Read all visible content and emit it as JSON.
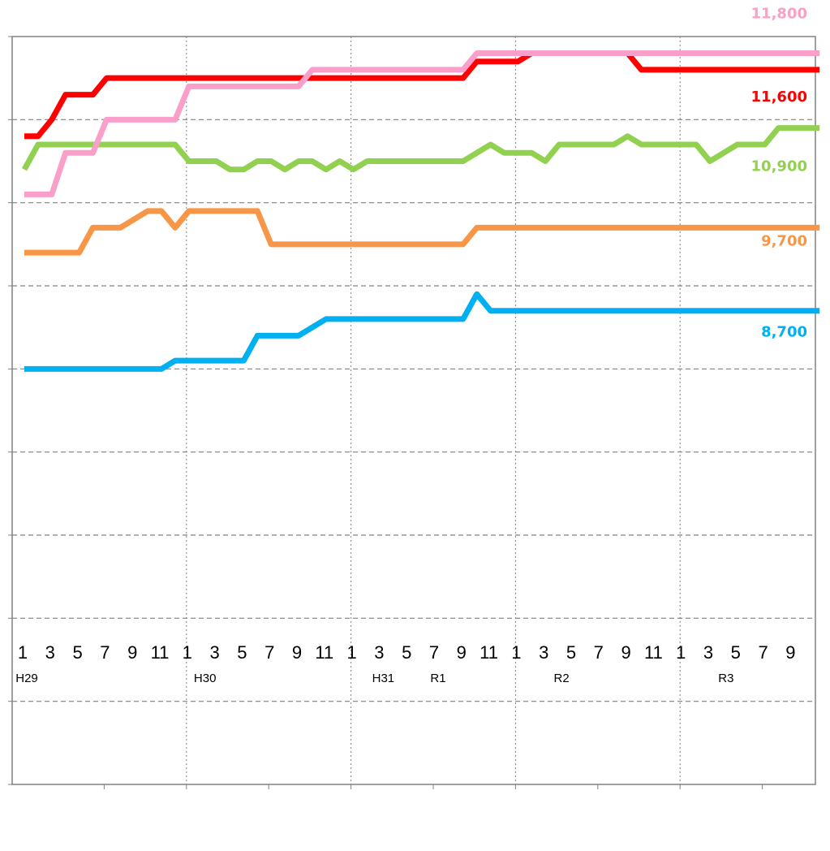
{
  "chart_data": {
    "type": "line",
    "categories": [
      "1",
      null,
      "3",
      null,
      "5",
      null,
      "7",
      null,
      "9",
      null,
      "11",
      null,
      "1",
      null,
      "3",
      null,
      "5",
      null,
      "7",
      null,
      "9",
      null,
      "11",
      null,
      "1",
      null,
      "3",
      null,
      "5",
      null,
      "7",
      null,
      "9",
      null,
      "11",
      null,
      "1",
      null,
      "3",
      null,
      "5",
      null,
      "7",
      null,
      "9",
      null,
      "11",
      null,
      "1",
      null,
      "3",
      null,
      "5",
      null,
      "7",
      null,
      "9",
      null,
      null
    ],
    "era_labels": [
      "H29",
      null,
      null,
      null,
      null,
      null,
      null,
      null,
      null,
      null,
      null,
      null,
      null,
      "H30",
      null,
      null,
      null,
      null,
      null,
      null,
      null,
      null,
      null,
      null,
      null,
      null,
      "H31",
      null,
      null,
      null,
      "R1",
      null,
      null,
      null,
      null,
      null,
      null,
      null,
      null,
      "R2",
      null,
      null,
      null,
      null,
      null,
      null,
      null,
      null,
      null,
      null,
      null,
      "R3",
      null,
      null,
      null,
      null,
      null,
      null,
      null
    ],
    "ylim": [
      3000,
      12000
    ],
    "yticks": [
      3000,
      4000,
      5000,
      6000,
      7000,
      8000,
      9000,
      10000,
      11000,
      12000
    ],
    "grid": true,
    "series": [
      {
        "color": "#00b0f0",
        "values": [
          8000,
          8000,
          8000,
          8000,
          8000,
          8000,
          8000,
          8000,
          8000,
          8000,
          8000,
          8100,
          8100,
          8100,
          8100,
          8100,
          8100,
          8400,
          8400,
          8400,
          8400,
          8500,
          8600,
          8600,
          8600,
          8600,
          8600,
          8600,
          8600,
          8600,
          8600,
          8600,
          8600,
          8900,
          8700,
          8700,
          8700,
          8700,
          8700,
          8700,
          8700,
          8700,
          8700,
          8700,
          8700,
          8700,
          8700,
          8700,
          8700,
          8700,
          8700,
          8700,
          8700,
          8700,
          8700,
          8700,
          8700,
          8700,
          8700
        ],
        "value_labels": [
          null,
          null,
          null,
          null,
          null,
          null,
          null,
          null,
          null,
          null,
          null,
          null,
          null,
          null,
          null,
          null,
          null,
          null,
          null,
          null,
          null,
          null,
          null,
          null,
          null,
          null,
          null,
          null,
          null,
          null,
          null,
          null,
          null,
          null,
          null,
          null,
          null,
          null,
          null,
          null,
          null,
          null,
          null,
          null,
          null,
          null,
          null,
          null,
          null,
          null,
          null,
          null,
          null,
          null,
          null,
          null,
          null,
          null,
          "8,700"
        ]
      },
      {
        "color": "#f79646",
        "values": [
          9400,
          9400,
          9400,
          9400,
          9400,
          9700,
          9700,
          9700,
          9800,
          9900,
          9900,
          9700,
          9900,
          9900,
          9900,
          9900,
          9900,
          9900,
          9500,
          9500,
          9500,
          9500,
          9500,
          9500,
          9500,
          9500,
          9500,
          9500,
          9500,
          9500,
          9500,
          9500,
          9500,
          9700,
          9700,
          9700,
          9700,
          9700,
          9700,
          9700,
          9700,
          9700,
          9700,
          9700,
          9700,
          9700,
          9700,
          9700,
          9700,
          9700,
          9700,
          9700,
          9700,
          9700,
          9700,
          9700,
          9700,
          9700,
          9700
        ],
        "value_labels": [
          null,
          null,
          null,
          null,
          null,
          null,
          null,
          null,
          null,
          null,
          null,
          null,
          null,
          null,
          null,
          null,
          null,
          null,
          null,
          null,
          null,
          null,
          null,
          null,
          null,
          null,
          null,
          null,
          null,
          null,
          null,
          null,
          null,
          null,
          null,
          null,
          null,
          null,
          null,
          null,
          null,
          null,
          null,
          null,
          null,
          null,
          null,
          null,
          null,
          null,
          null,
          null,
          null,
          null,
          null,
          null,
          null,
          null,
          "9,700"
        ]
      },
      {
        "color": "#92d050",
        "values": [
          10400,
          10700,
          10700,
          10700,
          10700,
          10700,
          10700,
          10700,
          10700,
          10700,
          10700,
          10700,
          10500,
          10500,
          10500,
          10400,
          10400,
          10500,
          10500,
          10400,
          10500,
          10500,
          10400,
          10500,
          10400,
          10500,
          10500,
          10500,
          10500,
          10500,
          10500,
          10500,
          10500,
          10600,
          10700,
          10600,
          10600,
          10600,
          10500,
          10700,
          10700,
          10700,
          10700,
          10700,
          10800,
          10700,
          10700,
          10700,
          10700,
          10700,
          10500,
          10600,
          10700,
          10700,
          10700,
          10900,
          10900,
          10900,
          10900
        ],
        "value_labels": [
          null,
          null,
          null,
          null,
          null,
          null,
          null,
          null,
          null,
          null,
          null,
          null,
          null,
          null,
          null,
          null,
          null,
          null,
          null,
          null,
          null,
          null,
          null,
          null,
          null,
          null,
          null,
          null,
          null,
          null,
          null,
          null,
          null,
          null,
          null,
          null,
          null,
          null,
          null,
          null,
          null,
          null,
          null,
          null,
          null,
          null,
          null,
          null,
          null,
          null,
          null,
          null,
          null,
          null,
          null,
          null,
          null,
          null,
          "10,900"
        ]
      },
      {
        "color": "#ff0000",
        "values": [
          10800,
          10800,
          11000,
          11300,
          11300,
          11300,
          11500,
          11500,
          11500,
          11500,
          11500,
          11500,
          11500,
          11500,
          11500,
          11500,
          11500,
          11500,
          11500,
          11500,
          11500,
          11500,
          11500,
          11500,
          11500,
          11500,
          11500,
          11500,
          11500,
          11500,
          11500,
          11500,
          11500,
          11700,
          11700,
          11700,
          11700,
          11800,
          11800,
          11800,
          11800,
          11800,
          11800,
          11800,
          11800,
          11600,
          11600,
          11600,
          11600,
          11600,
          11600,
          11600,
          11600,
          11600,
          11600,
          11600,
          11600,
          11600,
          11600
        ],
        "value_labels": [
          null,
          null,
          null,
          null,
          null,
          null,
          null,
          null,
          null,
          null,
          null,
          null,
          null,
          null,
          null,
          null,
          null,
          null,
          null,
          null,
          null,
          null,
          null,
          null,
          null,
          null,
          null,
          null,
          null,
          null,
          null,
          null,
          null,
          null,
          null,
          null,
          null,
          null,
          null,
          null,
          null,
          null,
          null,
          null,
          null,
          null,
          null,
          null,
          null,
          null,
          null,
          null,
          null,
          null,
          null,
          null,
          null,
          null,
          "11,600"
        ]
      },
      {
        "color": "#f99fc9",
        "values": [
          10100,
          10100,
          10100,
          10600,
          10600,
          10600,
          11000,
          11000,
          11000,
          11000,
          11000,
          11000,
          11400,
          11400,
          11400,
          11400,
          11400,
          11400,
          11400,
          11400,
          11400,
          11600,
          11600,
          11600,
          11600,
          11600,
          11600,
          11600,
          11600,
          11600,
          11600,
          11600,
          11600,
          11800,
          11800,
          11800,
          11800,
          11800,
          11800,
          11800,
          11800,
          11800,
          11800,
          11800,
          11800,
          11800,
          11800,
          11800,
          11800,
          11800,
          11800,
          11800,
          11800,
          11800,
          11800,
          11800,
          11800,
          11800,
          11800
        ],
        "value_labels": [
          null,
          null,
          null,
          null,
          null,
          null,
          null,
          null,
          null,
          null,
          null,
          null,
          null,
          null,
          null,
          null,
          null,
          null,
          null,
          null,
          null,
          null,
          null,
          null,
          null,
          null,
          null,
          null,
          null,
          null,
          null,
          null,
          null,
          null,
          null,
          null,
          null,
          null,
          null,
          null,
          null,
          null,
          null,
          null,
          null,
          null,
          null,
          null,
          null,
          null,
          null,
          null,
          null,
          null,
          null,
          null,
          null,
          null,
          "11,800"
        ]
      }
    ]
  }
}
